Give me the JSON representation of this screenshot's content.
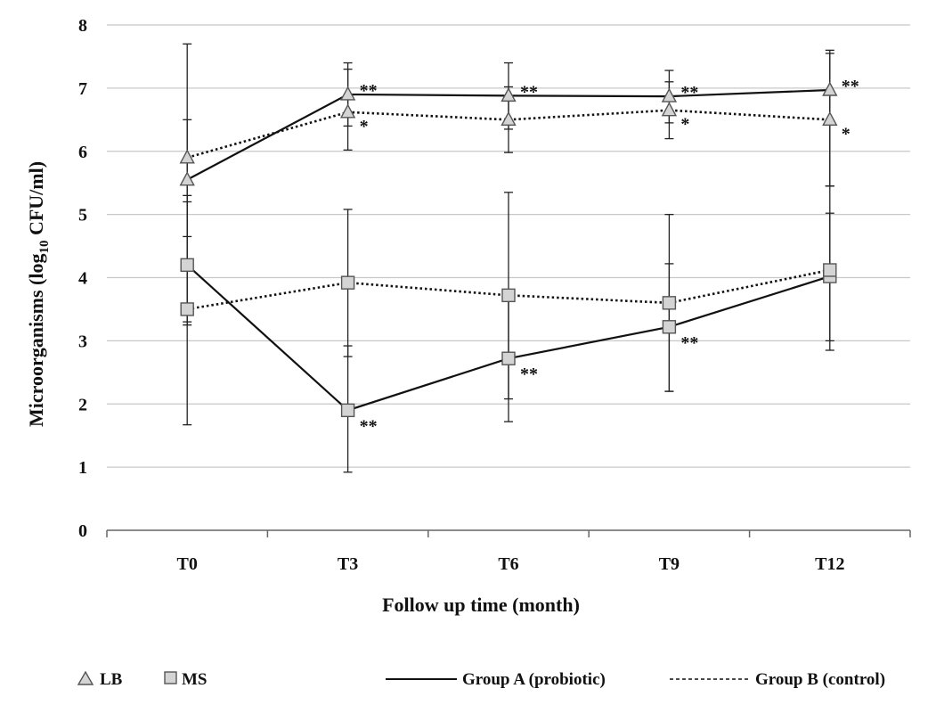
{
  "chart_data": {
    "type": "line",
    "xlabel": "Follow up time (month)",
    "ylabel_main": "Microorganisms (log",
    "ylabel_sub": "10",
    "ylabel_end": " CFU/ml)",
    "categories": [
      "T0",
      "T3",
      "T6",
      "T9",
      "T12"
    ],
    "ylim": [
      0,
      8
    ],
    "yticks": [
      "0",
      "1",
      "2",
      "3",
      "4",
      "5",
      "6",
      "7",
      "8"
    ],
    "grid": true,
    "legend_position": "bottom",
    "legend": {
      "marker_lb": "LB",
      "marker_ms": "MS",
      "line_a": "Group A (probiotic)",
      "line_b": "Group B (control)"
    },
    "series": [
      {
        "key": "lb_a",
        "marker": "triangle",
        "dash": "solid",
        "values": [
          5.55,
          6.9,
          6.88,
          6.87,
          6.97
        ],
        "err_low": [
          4.65,
          6.4,
          6.35,
          6.45,
          5.45
        ],
        "err_high": [
          6.5,
          7.4,
          7.4,
          7.28,
          7.55
        ],
        "sig": [
          "",
          "**",
          "**",
          "**",
          "**"
        ]
      },
      {
        "key": "lb_b",
        "marker": "triangle",
        "dash": "dotted",
        "values": [
          5.9,
          6.62,
          6.5,
          6.65,
          6.5
        ],
        "err_low": [
          3.25,
          6.02,
          5.98,
          6.2,
          5.45
        ],
        "err_high": [
          7.7,
          7.3,
          7.02,
          7.1,
          7.6
        ],
        "sig": [
          "",
          "*",
          "",
          "*",
          "*"
        ]
      },
      {
        "key": "ms_a",
        "marker": "square",
        "dash": "solid",
        "values": [
          4.2,
          1.9,
          2.72,
          3.22,
          4.02
        ],
        "err_low": [
          3.3,
          0.92,
          1.72,
          2.2,
          2.85
        ],
        "err_high": [
          5.3,
          2.92,
          3.72,
          4.22,
          5.02
        ],
        "sig": [
          "",
          "**",
          "**",
          "**",
          ""
        ]
      },
      {
        "key": "ms_b",
        "marker": "square",
        "dash": "dotted",
        "values": [
          3.5,
          3.92,
          3.72,
          3.6,
          4.12
        ],
        "err_low": [
          1.67,
          2.75,
          2.08,
          2.2,
          3.0
        ],
        "err_high": [
          5.2,
          5.08,
          5.35,
          5.0,
          5.45
        ],
        "sig": [
          "",
          "",
          "",
          "",
          ""
        ]
      }
    ]
  }
}
